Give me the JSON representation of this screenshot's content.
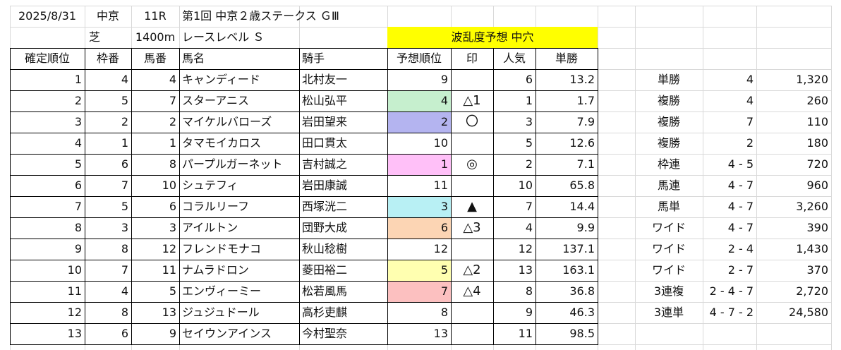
{
  "header": {
    "date": "2025/8/31",
    "venue": "中京",
    "race_no": "11R",
    "race_name": "第1回 中京２歳ステークス ＧⅢ",
    "surface": "芝",
    "distance": "1400m",
    "race_level": "レースレベル Ｓ",
    "forecast": "波乱度予想 中穴"
  },
  "columns": [
    "確定順位",
    "枠番",
    "馬番",
    "馬名",
    "騎手",
    "予想順位",
    "印",
    "人気",
    "単勝"
  ],
  "rows": [
    {
      "pos": "1",
      "waku": "4",
      "num": "4",
      "horse": "キャンディード",
      "jockey": "北村友一",
      "pred": "9",
      "mark": "",
      "pop": "6",
      "odds": "13.2",
      "pred_color": ""
    },
    {
      "pos": "2",
      "waku": "5",
      "num": "7",
      "horse": "スターアニス",
      "jockey": "松山弘平",
      "pred": "4",
      "mark": "△1",
      "pop": "1",
      "odds": "1.7",
      "pred_color": "#c6efce"
    },
    {
      "pos": "3",
      "waku": "2",
      "num": "2",
      "horse": "マイケルバローズ",
      "jockey": "岩田望来",
      "pred": "2",
      "mark": "〇",
      "pop": "3",
      "odds": "7.9",
      "pred_color": "#b4b4f0"
    },
    {
      "pos": "4",
      "waku": "1",
      "num": "1",
      "horse": "タマモイカロス",
      "jockey": "田口貫太",
      "pred": "10",
      "mark": "",
      "pop": "5",
      "odds": "12.6",
      "pred_color": ""
    },
    {
      "pos": "5",
      "waku": "6",
      "num": "8",
      "horse": "パープルガーネット",
      "jockey": "吉村誠之",
      "pred": "1",
      "mark": "◎",
      "pop": "2",
      "odds": "7.1",
      "pred_color": "#ffc0f8"
    },
    {
      "pos": "6",
      "waku": "7",
      "num": "10",
      "horse": "シュテフィ",
      "jockey": "岩田康誠",
      "pred": "11",
      "mark": "",
      "pop": "10",
      "odds": "65.8",
      "pred_color": ""
    },
    {
      "pos": "7",
      "waku": "5",
      "num": "6",
      "horse": "コラルリーフ",
      "jockey": "西塚洸二",
      "pred": "3",
      "mark": "▲",
      "pop": "7",
      "odds": "14.4",
      "pred_color": "#b8f0f4"
    },
    {
      "pos": "8",
      "waku": "3",
      "num": "3",
      "horse": "アイルトン",
      "jockey": "団野大成",
      "pred": "6",
      "mark": "△3",
      "pop": "4",
      "odds": "9.9",
      "pred_color": "#fcd5b4"
    },
    {
      "pos": "9",
      "waku": "8",
      "num": "12",
      "horse": "フレンドモナコ",
      "jockey": "秋山稔樹",
      "pred": "12",
      "mark": "",
      "pop": "12",
      "odds": "137.1",
      "pred_color": ""
    },
    {
      "pos": "10",
      "waku": "7",
      "num": "11",
      "horse": "ナムラドロン",
      "jockey": "菱田裕二",
      "pred": "5",
      "mark": "△2",
      "pop": "13",
      "odds": "163.1",
      "pred_color": "#ffffb0"
    },
    {
      "pos": "11",
      "waku": "4",
      "num": "5",
      "horse": "エンヴィーミー",
      "jockey": "松若風馬",
      "pred": "7",
      "mark": "△4",
      "pop": "8",
      "odds": "36.8",
      "pred_color": "#fcc0c0"
    },
    {
      "pos": "12",
      "waku": "8",
      "num": "13",
      "horse": "ジュジュドール",
      "jockey": "高杉吏麒",
      "pred": "8",
      "mark": "",
      "pop": "9",
      "odds": "46.3",
      "pred_color": ""
    },
    {
      "pos": "13",
      "waku": "6",
      "num": "9",
      "horse": "セイウンアインス",
      "jockey": "今村聖奈",
      "pred": "13",
      "mark": "",
      "pop": "11",
      "odds": "98.5",
      "pred_color": ""
    }
  ],
  "payouts": [
    {
      "type": "単勝",
      "combo": "4",
      "amount": "1,320"
    },
    {
      "type": "複勝",
      "combo": "4",
      "amount": "260"
    },
    {
      "type": "複勝",
      "combo": "7",
      "amount": "110"
    },
    {
      "type": "複勝",
      "combo": "2",
      "amount": "180"
    },
    {
      "type": "枠連",
      "combo": "4 - 5",
      "amount": "720"
    },
    {
      "type": "馬連",
      "combo": "4 - 7",
      "amount": "960"
    },
    {
      "type": "馬単",
      "combo": "4 - 7",
      "amount": "3,260"
    },
    {
      "type": "ワイド",
      "combo": "4 - 7",
      "amount": "390"
    },
    {
      "type": "ワイド",
      "combo": "2 - 4",
      "amount": "1,430"
    },
    {
      "type": "ワイド",
      "combo": "2 - 7",
      "amount": "370"
    },
    {
      "type": "3連複",
      "combo": "2 - 4 - 7",
      "amount": "2,720"
    },
    {
      "type": "3連単",
      "combo": "4 - 7 - 2",
      "amount": "24,580"
    }
  ],
  "colors": {
    "forecast_bg": "#ffff00",
    "gridline": "#d9d9d9",
    "border": "#000000"
  }
}
